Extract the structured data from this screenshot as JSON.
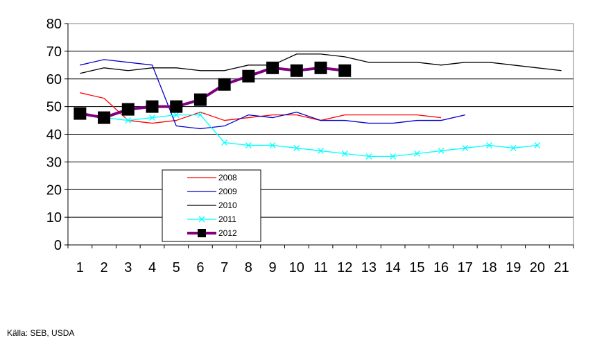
{
  "chart_data": {
    "type": "line",
    "x": [
      1,
      2,
      3,
      4,
      5,
      6,
      7,
      8,
      9,
      10,
      11,
      12,
      13,
      14,
      15,
      16,
      17,
      18,
      19,
      20,
      21
    ],
    "ylim": [
      0,
      80
    ],
    "yticks": [
      0,
      10,
      20,
      30,
      40,
      50,
      60,
      70,
      80
    ],
    "grid": "horizontal",
    "legend_position": "center-left",
    "series": [
      {
        "name": "2008",
        "color": "#ff0000",
        "marker": "none",
        "values": [
          55,
          53,
          45,
          44,
          45,
          48,
          45,
          46,
          47,
          47,
          45,
          47,
          47,
          47,
          47,
          46,
          null,
          null,
          null,
          null,
          null
        ]
      },
      {
        "name": "2009",
        "color": "#0000cc",
        "marker": "none",
        "values": [
          65,
          67,
          66,
          65,
          43,
          42,
          43,
          47,
          46,
          48,
          45,
          45,
          44,
          44,
          45,
          45,
          47,
          null,
          null,
          null,
          null
        ]
      },
      {
        "name": "2010",
        "color": "#000000",
        "marker": "none",
        "values": [
          62,
          64,
          63,
          64,
          64,
          63,
          63,
          65,
          65,
          69,
          69,
          68,
          66,
          66,
          66,
          65,
          66,
          66,
          65,
          64,
          63
        ]
      },
      {
        "name": "2011",
        "color": "#00ffff",
        "marker": "x",
        "values": [
          48,
          46,
          45,
          46,
          47,
          47,
          37,
          36,
          36,
          35,
          34,
          33,
          32,
          32,
          33,
          34,
          35,
          36,
          35,
          36,
          null
        ]
      },
      {
        "name": "2012",
        "color": "#800080",
        "marker": "square",
        "values": [
          47.5,
          46,
          49,
          50,
          50,
          52.5,
          58,
          61,
          64,
          63,
          64,
          63,
          null,
          null,
          null,
          null,
          null,
          null,
          null,
          null,
          null
        ]
      }
    ]
  },
  "source_text": "Källa: SEB, USDA"
}
